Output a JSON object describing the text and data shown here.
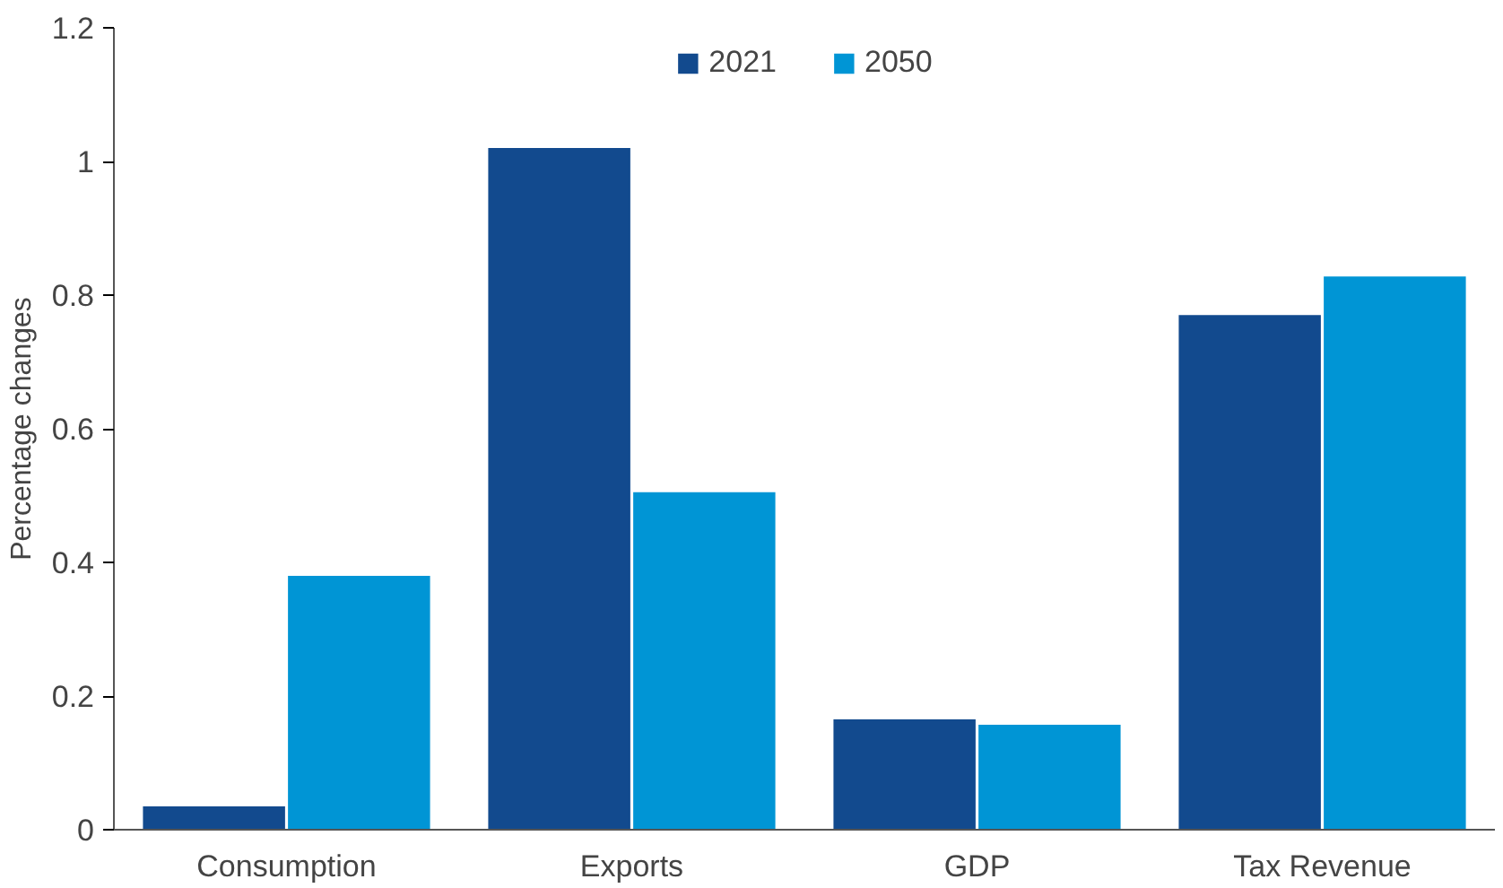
{
  "chart_data": {
    "type": "bar",
    "ylabel": "Percentage changes",
    "categories": [
      "Consumption",
      "Exports",
      "GDP",
      "Tax Revenue"
    ],
    "series": [
      {
        "name": "2021",
        "color": "#124a8e",
        "values": [
          0.035,
          1.02,
          0.165,
          0.77
        ]
      },
      {
        "name": "2050",
        "color": "#0095d5",
        "values": [
          0.38,
          0.505,
          0.157,
          0.828
        ]
      }
    ],
    "ylim": [
      0,
      1.2
    ],
    "yticks": [
      0,
      0.2,
      0.4,
      0.6,
      0.8,
      1,
      1.2
    ],
    "grid": false,
    "legend": "top"
  }
}
